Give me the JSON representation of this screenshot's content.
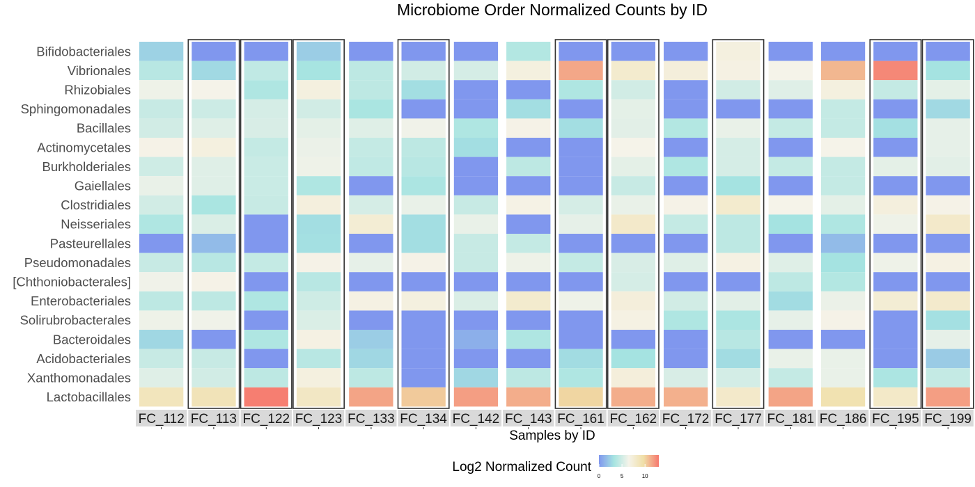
{
  "chart_data": {
    "type": "heatmap",
    "title": "Microbiome Order Normalized Counts by ID",
    "xlabel": "Samples by ID",
    "ylabel": "",
    "x": [
      "FC_112",
      "FC_113",
      "FC_122",
      "FC_123",
      "FC_133",
      "FC_134",
      "FC_142",
      "FC_143",
      "FC_161",
      "FC_162",
      "FC_172",
      "FC_177",
      "FC_181",
      "FC_186",
      "FC_195",
      "FC_199"
    ],
    "y": [
      "Bifidobacteriales",
      "Vibrionales",
      "Rhizobiales",
      "Sphingomonadales",
      "Bacillales",
      "Actinomycetales",
      "Burkholderiales",
      "Gaiellales",
      "Clostridiales",
      "Neisseriales",
      "Pasteurellales",
      "Pseudomonadales",
      "[Chthoniobacterales]",
      "Enterobacteriales",
      "Solirubrobacterales",
      "Bacteroidales",
      "Acidobacteriales",
      "Xanthomonadales",
      "Lactobacillales"
    ],
    "values": [
      [
        2.5,
        0,
        0,
        2.3,
        0,
        0,
        0,
        3.8,
        0,
        0,
        0,
        7.0,
        0,
        0,
        0,
        0
      ],
      [
        4.0,
        2.8,
        4.3,
        3.3,
        4.2,
        5.0,
        5.2,
        7.0,
        11.5,
        7.8,
        7.2,
        6.8,
        6.5,
        11.0,
        12.5,
        3.2
      ],
      [
        6.2,
        6.5,
        3.6,
        7.0,
        4.2,
        3.0,
        0,
        0,
        3.6,
        5.0,
        0,
        5.0,
        5.6,
        7.0,
        4.5,
        5.8
      ],
      [
        4.6,
        4.8,
        5.2,
        5.0,
        3.4,
        0,
        0,
        3.0,
        0,
        5.8,
        0,
        0,
        0,
        4.5,
        0,
        2.8
      ],
      [
        5.0,
        5.6,
        5.3,
        5.8,
        5.6,
        6.3,
        3.6,
        6.6,
        3.0,
        5.7,
        3.8,
        6.0,
        4.5,
        4.5,
        3.1,
        5.9
      ],
      [
        6.6,
        7.0,
        4.5,
        6.1,
        4.5,
        4.2,
        3.0,
        0,
        0,
        6.5,
        0,
        5.2,
        0,
        6.5,
        0,
        5.9
      ],
      [
        4.9,
        5.6,
        4.7,
        6.2,
        4.3,
        4.0,
        0,
        4.2,
        0,
        5.8,
        3.6,
        5.2,
        4.5,
        4.5,
        5.8,
        5.7
      ],
      [
        6.0,
        5.6,
        4.7,
        3.6,
        0,
        3.5,
        0,
        0,
        0,
        4.6,
        0,
        3.2,
        0,
        4.5,
        0,
        0
      ],
      [
        5.0,
        3.4,
        4.6,
        7.1,
        5.2,
        6.0,
        4.6,
        6.7,
        5.2,
        6.0,
        6.6,
        7.8,
        6.5,
        5.8,
        7.1,
        6.6
      ],
      [
        3.6,
        5.4,
        0,
        3.0,
        7.5,
        3.0,
        6.0,
        0,
        5.9,
        8.0,
        4.5,
        4.2,
        3.2,
        3.6,
        6.2,
        8.0
      ],
      [
        0,
        1.5,
        0,
        3.1,
        0,
        3.0,
        4.6,
        4.5,
        0,
        0,
        0,
        4.2,
        0,
        1.5,
        0,
        0
      ],
      [
        4.6,
        4.0,
        4.5,
        6.6,
        5.9,
        6.6,
        4.6,
        6.2,
        4.5,
        5.3,
        5.6,
        6.8,
        5.6,
        3.2,
        6.2,
        6.8
      ],
      [
        6.3,
        6.6,
        0,
        4.0,
        0,
        0,
        0,
        0,
        0,
        5.2,
        0,
        0,
        4.2,
        3.8,
        0,
        0
      ],
      [
        4.2,
        4.2,
        3.6,
        4.9,
        6.8,
        7.0,
        5.4,
        7.8,
        6.2,
        7.2,
        5.0,
        5.7,
        2.9,
        6.1,
        7.5,
        7.9
      ],
      [
        6.2,
        6.3,
        0,
        5.4,
        0,
        0,
        0,
        0,
        0,
        6.8,
        3.6,
        3.5,
        5.9,
        6.6,
        0,
        3.1
      ],
      [
        2.7,
        0,
        3.6,
        6.8,
        2.3,
        0,
        1.0,
        3.6,
        0,
        0,
        0,
        4.0,
        0,
        0,
        0,
        5.9
      ],
      [
        4.6,
        4.6,
        0,
        4.0,
        2.7,
        0,
        0,
        0,
        2.9,
        3.2,
        0,
        2.9,
        6.0,
        6.0,
        0,
        2.2
      ],
      [
        5.6,
        5.0,
        4.2,
        7.0,
        4.2,
        0,
        2.7,
        4.2,
        3.6,
        7.2,
        5.3,
        5.1,
        4.5,
        6.0,
        3.5,
        4.5
      ],
      [
        8.7,
        8.9,
        12.8,
        8.3,
        11.6,
        10.4,
        11.8,
        11.3,
        10.0,
        11.3,
        11.2,
        8.0,
        11.6,
        9.2,
        8.1,
        11.8
      ]
    ],
    "boxed_columns": [
      "FC_113",
      "FC_122",
      "FC_123",
      "FC_134",
      "FC_161",
      "FC_162",
      "FC_177",
      "FC_195",
      "FC_199"
    ],
    "legend": {
      "title": "Log2 Normalized Count",
      "ticks": [
        0,
        5,
        10
      ],
      "limits": [
        0,
        13
      ],
      "position": "bottom",
      "colors": [
        "#8097ee",
        "#a6e4e1",
        "#f5f3e9",
        "#f0dea6",
        "#f6786e"
      ]
    },
    "grid": false
  }
}
